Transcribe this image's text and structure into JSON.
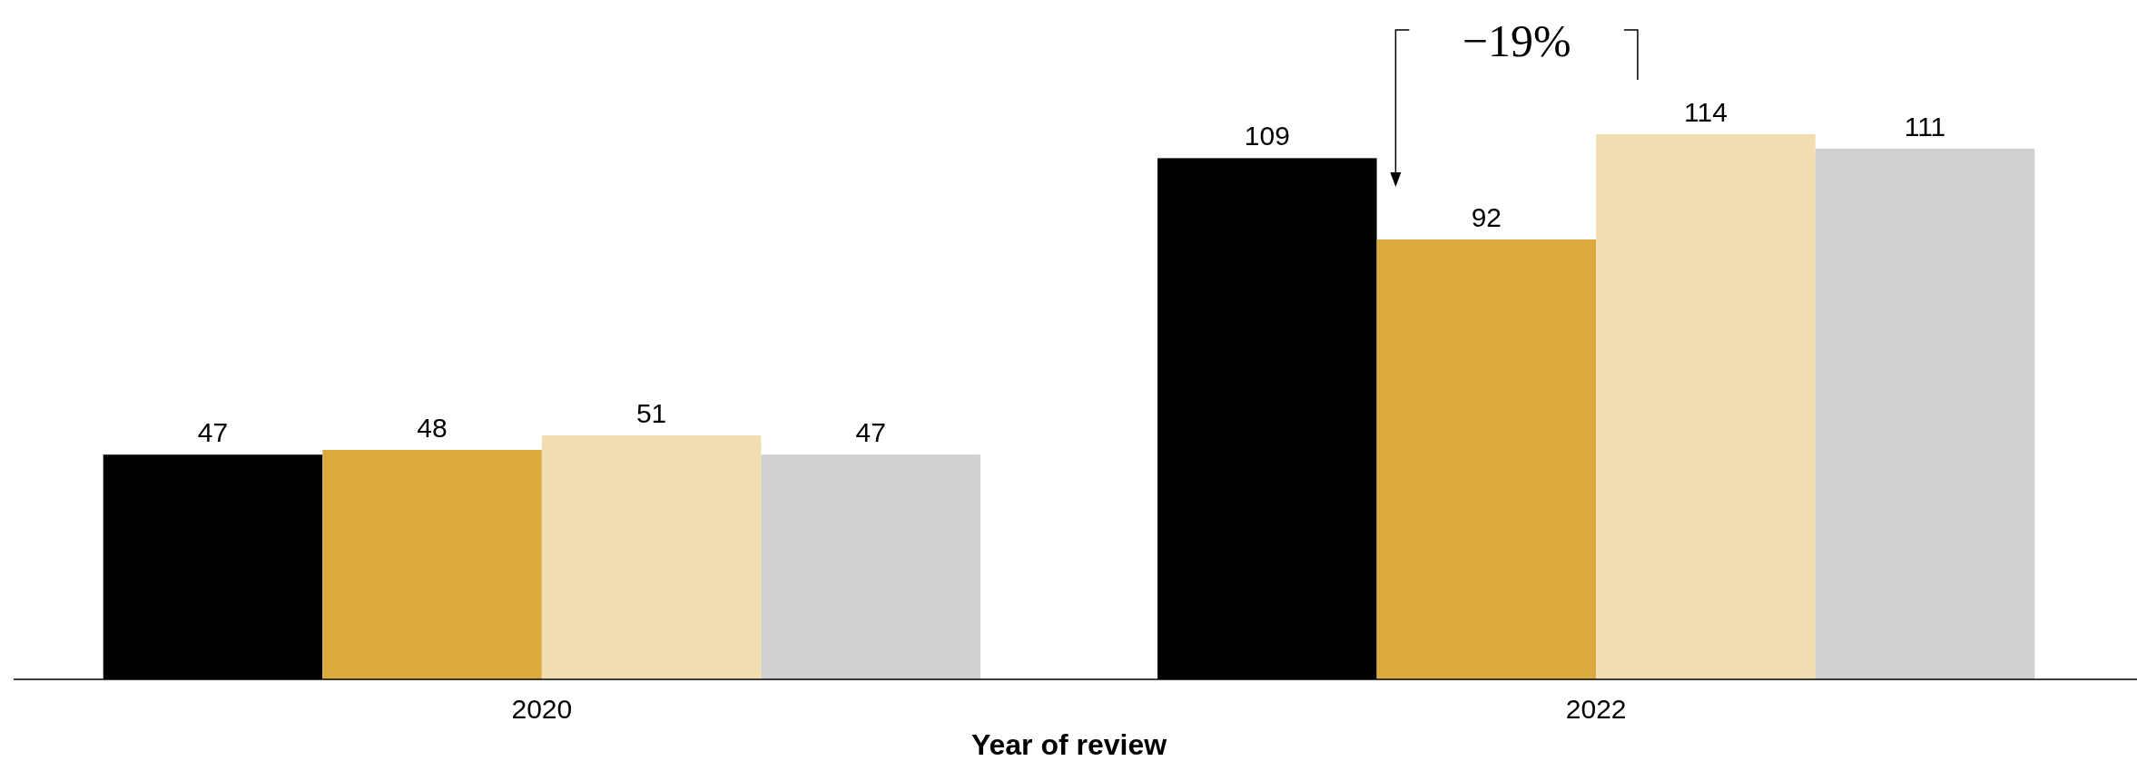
{
  "chart_data": {
    "type": "bar",
    "xlabel": "Year of review",
    "categories": [
      "2020",
      "2022"
    ],
    "series": [
      {
        "color": "#000000",
        "values": [
          47,
          109
        ]
      },
      {
        "color": "#dba93e",
        "values": [
          48,
          92
        ]
      },
      {
        "color": "#f1ddb1",
        "values": [
          51,
          114
        ]
      },
      {
        "color": "#d0d0d0",
        "values": [
          47,
          111
        ]
      }
    ],
    "tick_labels": "x",
    "data_labels": true,
    "annotations": [
      "−19%"
    ]
  }
}
